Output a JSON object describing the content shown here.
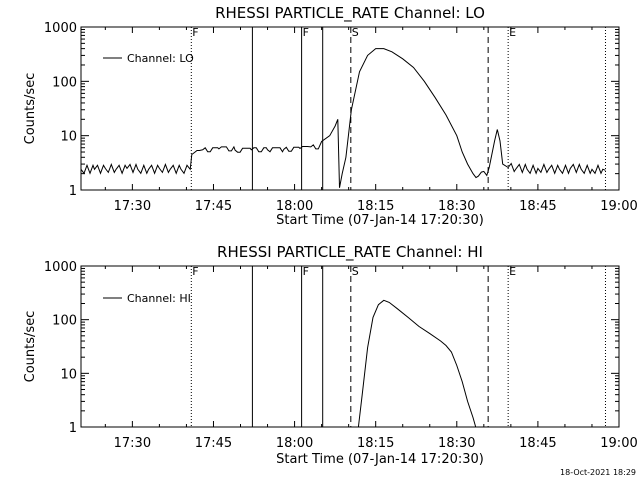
{
  "footer": {
    "timestamp": "18-Oct-2021 18:29"
  },
  "chart_data": [
    {
      "type": "line",
      "title": "RHESSI PARTICLE_RATE Channel: LO",
      "xlabel": "Start Time (07-Jan-14 17:20:30)",
      "ylabel": "Counts/sec",
      "yscale": "log",
      "xlim_minutes": [
        1040.5,
        1140
      ],
      "ylim": [
        1,
        1000
      ],
      "xticks": [
        {
          "label": "17:30",
          "minute": 1050
        },
        {
          "label": "17:45",
          "minute": 1065
        },
        {
          "label": "18:00",
          "minute": 1080
        },
        {
          "label": "18:15",
          "minute": 1095
        },
        {
          "label": "18:30",
          "minute": 1110
        },
        {
          "label": "18:45",
          "minute": 1125
        },
        {
          "label": "19:00",
          "minute": 1140
        }
      ],
      "yticks": [
        {
          "label": "1",
          "value": 1
        },
        {
          "label": "10",
          "value": 10
        },
        {
          "label": "100",
          "value": 100
        },
        {
          "label": "1000",
          "value": 1000
        }
      ],
      "legend": {
        "label": "Channel: LO",
        "position": "top-left"
      },
      "markers": [
        {
          "minute": 1060.9,
          "style": "dotted",
          "label": "F"
        },
        {
          "minute": 1072.2,
          "style": "solid",
          "label": ""
        },
        {
          "minute": 1081.3,
          "style": "solid",
          "label": "F"
        },
        {
          "minute": 1085.2,
          "style": "solid",
          "label": ""
        },
        {
          "minute": 1090.4,
          "style": "dashed",
          "label": "S"
        },
        {
          "minute": 1115.8,
          "style": "dashed",
          "label": ""
        },
        {
          "minute": 1119.5,
          "style": "dotted",
          "label": "E"
        },
        {
          "minute": 1137.5,
          "style": "dotted",
          "label": ""
        }
      ],
      "series": [
        {
          "name": "Channel: LO",
          "x": [
            1040.5,
            1043,
            1045,
            1047,
            1049,
            1051,
            1053,
            1055,
            1057,
            1059,
            1060.7,
            1061,
            1061.5,
            1063,
            1066,
            1069,
            1072,
            1075,
            1078,
            1081,
            1083,
            1085,
            1086.5,
            1087.5,
            1088,
            1088.3,
            1088.8,
            1089.5,
            1090.5,
            1092,
            1093.5,
            1095,
            1096.5,
            1098,
            1100,
            1102,
            1104,
            1106,
            1108,
            1110,
            1111,
            1112,
            1113,
            1114,
            1115,
            1116,
            1117,
            1117.5,
            1118,
            1118.5,
            1119.5,
            1121,
            1123,
            1125,
            1127,
            1129,
            1131,
            1133,
            1135,
            1137,
            1137.5
          ],
          "y": [
            2.4,
            2.4,
            2.5,
            2.4,
            2.5,
            2.4,
            2.4,
            2.5,
            2.4,
            2.4,
            2.4,
            4.5,
            4.9,
            5.5,
            5.7,
            5.4,
            5.5,
            5.5,
            5.6,
            5.8,
            6.2,
            7.8,
            10,
            15,
            20,
            1.1,
            2,
            4,
            30,
            150,
            300,
            400,
            400,
            350,
            260,
            180,
            100,
            50,
            24,
            10,
            5,
            3,
            2,
            1.8,
            2.2,
            2.6,
            8,
            13,
            8,
            3,
            2.6,
            2.5,
            2.4,
            2.5,
            2.4,
            2.4,
            2.5,
            2.4,
            2.4,
            2.4,
            2.3
          ]
        }
      ]
    },
    {
      "type": "line",
      "title": "RHESSI PARTICLE_RATE Channel: HI",
      "xlabel": "Start Time (07-Jan-14 17:20:30)",
      "ylabel": "Counts/sec",
      "yscale": "log",
      "xlim_minutes": [
        1040.5,
        1140
      ],
      "ylim": [
        1,
        1000
      ],
      "xticks": [
        {
          "label": "17:30",
          "minute": 1050
        },
        {
          "label": "17:45",
          "minute": 1065
        },
        {
          "label": "18:00",
          "minute": 1080
        },
        {
          "label": "18:15",
          "minute": 1095
        },
        {
          "label": "18:30",
          "minute": 1110
        },
        {
          "label": "18:45",
          "minute": 1125
        },
        {
          "label": "19:00",
          "minute": 1140
        }
      ],
      "yticks": [
        {
          "label": "1",
          "value": 1
        },
        {
          "label": "10",
          "value": 10
        },
        {
          "label": "100",
          "value": 100
        },
        {
          "label": "1000",
          "value": 1000
        }
      ],
      "legend": {
        "label": "Channel: HI",
        "position": "top-left"
      },
      "markers": [
        {
          "minute": 1060.9,
          "style": "dotted",
          "label": "F"
        },
        {
          "minute": 1072.2,
          "style": "solid",
          "label": ""
        },
        {
          "minute": 1081.3,
          "style": "solid",
          "label": "F"
        },
        {
          "minute": 1085.2,
          "style": "solid",
          "label": ""
        },
        {
          "minute": 1090.4,
          "style": "dashed",
          "label": "S"
        },
        {
          "minute": 1115.8,
          "style": "dashed",
          "label": ""
        },
        {
          "minute": 1119.5,
          "style": "dotted",
          "label": "E"
        },
        {
          "minute": 1137.5,
          "style": "dotted",
          "label": ""
        }
      ],
      "series": [
        {
          "name": "Channel: HI",
          "x": [
            1091.8,
            1092.5,
            1093.5,
            1094.5,
            1095.5,
            1096.5,
            1097.5,
            1099,
            1101,
            1103,
            1105,
            1107,
            1108,
            1109,
            1110,
            1111,
            1112,
            1113,
            1113.5
          ],
          "y": [
            1,
            4,
            30,
            110,
            190,
            230,
            210,
            160,
            110,
            75,
            55,
            40,
            33,
            25,
            14,
            7,
            3,
            1.5,
            1
          ]
        }
      ]
    }
  ]
}
